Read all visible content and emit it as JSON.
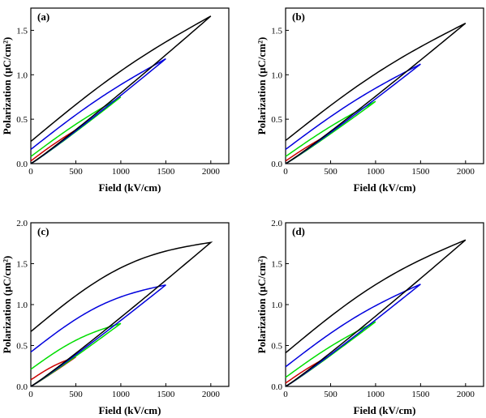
{
  "chart_data": [
    {
      "type": "line",
      "panel_label": "(a)",
      "xlabel": "Field (kV/cm)",
      "ylabel": "Polarization (μC/cm²)",
      "xlim": [
        0,
        2200
      ],
      "ylim": [
        0,
        1.75
      ],
      "xticks": [
        "0",
        "500",
        "1000",
        "1500",
        "2000"
      ],
      "yticks": [
        "0.0",
        "0.5",
        "1.0",
        "1.5"
      ],
      "grid": false,
      "series": [
        {
          "color": "#cc0000",
          "Emax": 500,
          "Pmax": 0.38,
          "Pr": 0.03
        },
        {
          "color": "#00dd00",
          "Emax": 1000,
          "Pmax": 0.75,
          "Pr": 0.08
        },
        {
          "color": "#0000dd",
          "Emax": 1500,
          "Pmax": 1.18,
          "Pr": 0.16
        },
        {
          "color": "#000000",
          "Emax": 2000,
          "Pmax": 1.66,
          "Pr": 0.25
        }
      ]
    },
    {
      "type": "line",
      "panel_label": "(b)",
      "xlabel": "Field (kV/cm)",
      "ylabel": "Polarization (μC/cm²)",
      "xlim": [
        0,
        2200
      ],
      "ylim": [
        0,
        1.75
      ],
      "xticks": [
        "0",
        "500",
        "1000",
        "1500",
        "2000"
      ],
      "yticks": [
        "0.0",
        "0.5",
        "1.0",
        "1.5"
      ],
      "grid": false,
      "series": [
        {
          "color": "#cc0000",
          "Emax": 500,
          "Pmax": 0.34,
          "Pr": 0.03
        },
        {
          "color": "#00dd00",
          "Emax": 1000,
          "Pmax": 0.7,
          "Pr": 0.08
        },
        {
          "color": "#0000dd",
          "Emax": 1500,
          "Pmax": 1.12,
          "Pr": 0.16
        },
        {
          "color": "#000000",
          "Emax": 2000,
          "Pmax": 1.58,
          "Pr": 0.26
        }
      ]
    },
    {
      "type": "line",
      "panel_label": "(c)",
      "xlabel": "Field (kV/cm)",
      "ylabel": "Polarization (μC/cm²)",
      "xlim": [
        0,
        2200
      ],
      "ylim": [
        0,
        2.0
      ],
      "xticks": [
        "0",
        "500",
        "1000",
        "1500",
        "2000"
      ],
      "yticks": [
        "0.0",
        "0.5",
        "1.0",
        "1.5",
        "2.0"
      ],
      "grid": false,
      "series": [
        {
          "color": "#cc0000",
          "Emax": 500,
          "Pmax": 0.36,
          "Pr": 0.08
        },
        {
          "color": "#00dd00",
          "Emax": 1000,
          "Pmax": 0.77,
          "Pr": 0.21
        },
        {
          "color": "#0000dd",
          "Emax": 1500,
          "Pmax": 1.24,
          "Pr": 0.42
        },
        {
          "color": "#000000",
          "Emax": 2000,
          "Pmax": 1.76,
          "Pr": 0.67
        }
      ]
    },
    {
      "type": "line",
      "panel_label": "(d)",
      "xlabel": "Field (kV/cm)",
      "ylabel": "Polarization (μC/cm²)",
      "xlim": [
        0,
        2200
      ],
      "ylim": [
        0,
        2.0
      ],
      "xticks": [
        "0",
        "500",
        "1000",
        "1500",
        "2000"
      ],
      "yticks": [
        "0.0",
        "0.5",
        "1.0",
        "1.5",
        "2.0"
      ],
      "grid": false,
      "series": [
        {
          "color": "#cc0000",
          "Emax": 500,
          "Pmax": 0.38,
          "Pr": 0.04
        },
        {
          "color": "#00dd00",
          "Emax": 1000,
          "Pmax": 0.79,
          "Pr": 0.11
        },
        {
          "color": "#0000dd",
          "Emax": 1500,
          "Pmax": 1.25,
          "Pr": 0.24
        },
        {
          "color": "#000000",
          "Emax": 2000,
          "Pmax": 1.79,
          "Pr": 0.41
        }
      ]
    }
  ]
}
